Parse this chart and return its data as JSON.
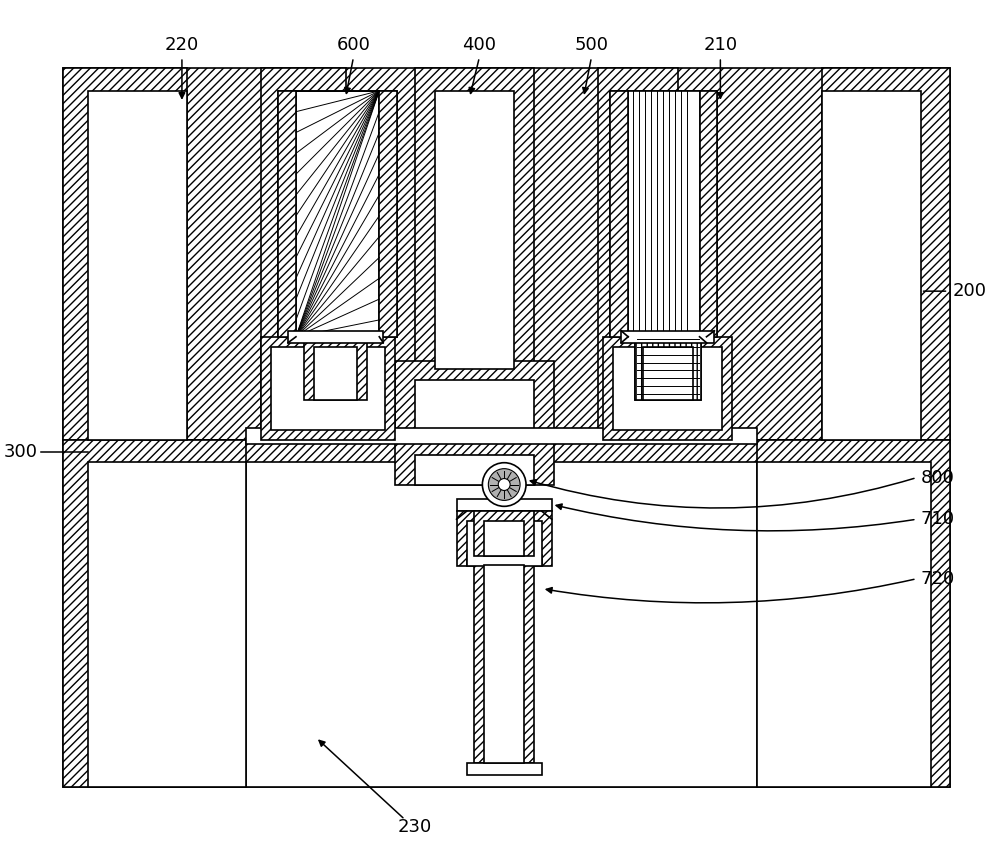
{
  "bg": "#ffffff",
  "lc": "#000000",
  "lw": 1.2,
  "figw": 10.0,
  "figh": 8.56,
  "dpi": 100,
  "label_fs": 13
}
